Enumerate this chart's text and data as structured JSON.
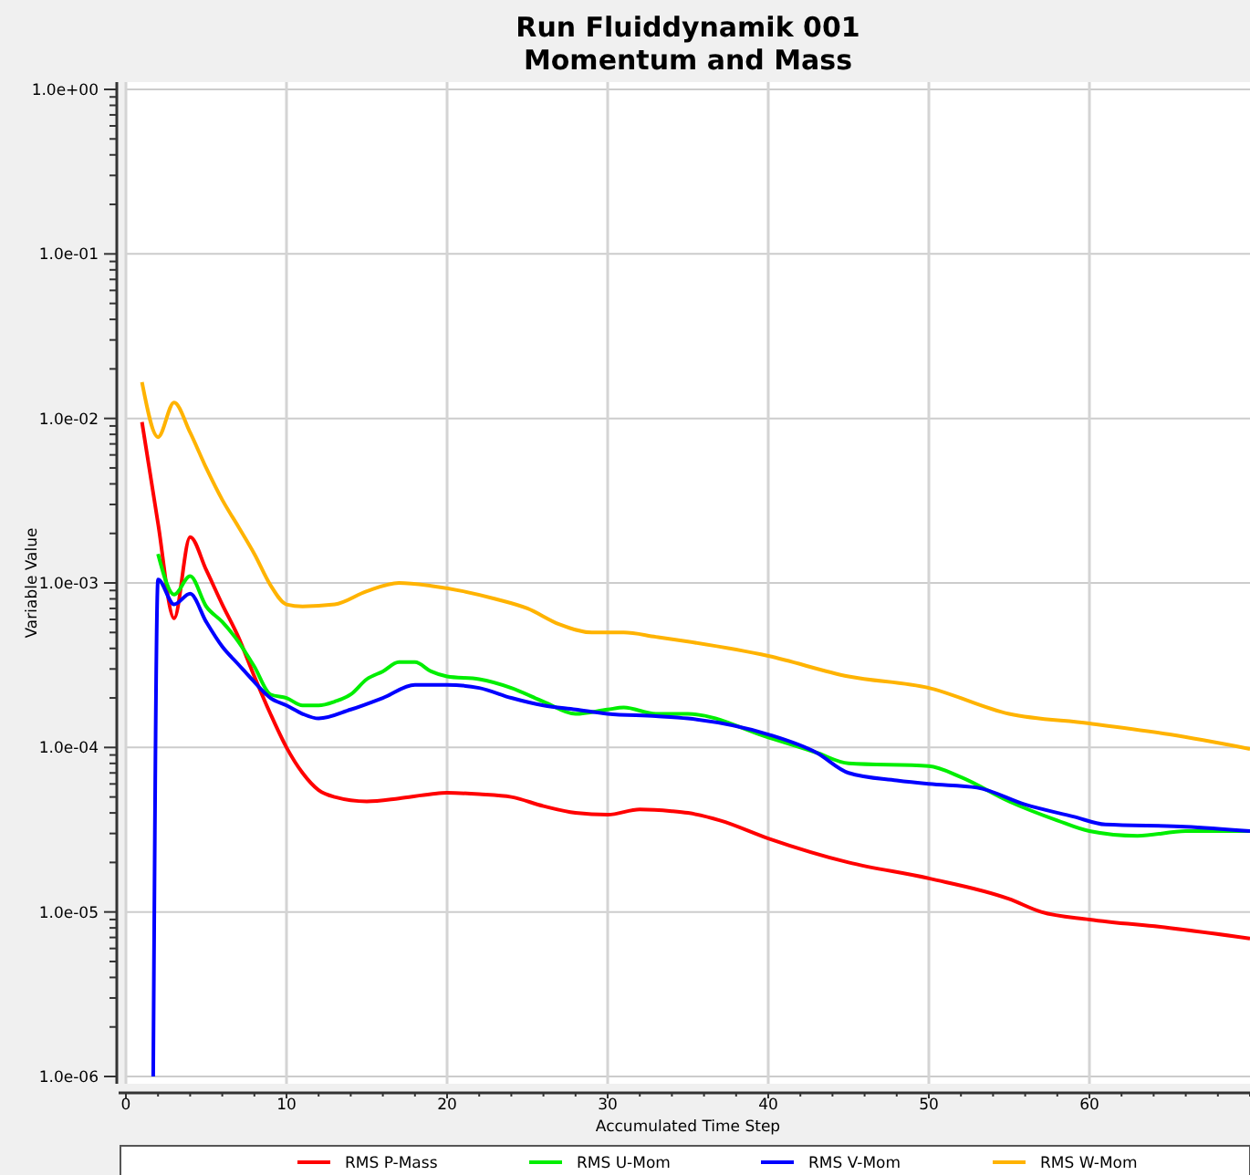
{
  "chart_data": {
    "type": "line",
    "title": "Run Fluiddynamik 001",
    "subtitle": "Momentum and Mass",
    "xlabel": "Accumulated Time Step",
    "ylabel": "Variable Value",
    "log": "y",
    "grid": true,
    "legend": "bottom",
    "marker": "none",
    "line_style": "solid",
    "xlim": [
      0,
      70
    ],
    "xticks": [
      0,
      10,
      20,
      30,
      40,
      50,
      60
    ],
    "ylim": [
      1e-06,
      1
    ],
    "yticks": [
      {
        "value": 1,
        "label": "1.0e+00"
      },
      {
        "value": 0.1,
        "label": "1.0e-01"
      },
      {
        "value": 0.01,
        "label": "1.0e-02"
      },
      {
        "value": 0.001,
        "label": "1.0e-03"
      },
      {
        "value": 0.0001,
        "label": "1.0e-04"
      },
      {
        "value": 1e-05,
        "label": "1.0e-05"
      },
      {
        "value": 1e-06,
        "label": "1.0e-06"
      }
    ],
    "series": [
      {
        "name": "RMS P-Mass",
        "color": "#ff0000",
        "x": [
          1,
          2,
          3,
          4,
          5,
          6,
          7,
          8,
          9,
          10,
          11,
          12,
          13,
          15,
          17,
          19,
          20,
          22,
          24,
          26,
          28,
          30,
          32,
          34,
          35,
          37,
          40,
          45,
          50,
          55,
          57,
          60,
          65,
          70
        ],
        "values": [
          0.0095,
          0.0023,
          0.00061,
          0.0019,
          0.0012,
          0.00074,
          0.00047,
          0.00027,
          0.00016,
          0.0001,
          7e-05,
          5.5e-05,
          5e-05,
          4.7e-05,
          4.9e-05,
          5.2e-05,
          5.3e-05,
          5.2e-05,
          5e-05,
          4.4e-05,
          4e-05,
          3.9e-05,
          4.2e-05,
          4.1e-05,
          4e-05,
          3.6e-05,
          2.8e-05,
          2e-05,
          1.6e-05,
          1.2e-05,
          1e-05,
          9e-06,
          8e-06,
          6.9e-06
        ]
      },
      {
        "name": "RMS U-Mom",
        "color": "#00ee00",
        "x": [
          2,
          3,
          4,
          5,
          6,
          7,
          8,
          9,
          10,
          11,
          12,
          13,
          14,
          15,
          16,
          17,
          18,
          19,
          20,
          22,
          24,
          26,
          28,
          30,
          31,
          33,
          35,
          40,
          43,
          45,
          50,
          52,
          55,
          58,
          60,
          63,
          66,
          70
        ],
        "values": [
          0.0015,
          0.00085,
          0.0011,
          0.00072,
          0.00058,
          0.00044,
          0.00031,
          0.00021,
          0.0002,
          0.00018,
          0.00018,
          0.00019,
          0.00021,
          0.00026,
          0.00029,
          0.00033,
          0.00033,
          0.00029,
          0.00027,
          0.00026,
          0.00023,
          0.00019,
          0.00016,
          0.00017,
          0.000175,
          0.00016,
          0.00016,
          0.000115,
          9.3e-05,
          8e-05,
          7.7e-05,
          6.6e-05,
          4.7e-05,
          3.6e-05,
          3.1e-05,
          2.9e-05,
          3.1e-05,
          3.1e-05
        ]
      },
      {
        "name": "RMS V-Mom",
        "color": "#0000ff",
        "x": [
          1.7,
          2,
          3,
          4,
          5,
          6,
          7,
          8,
          9,
          10,
          11,
          12,
          14,
          16,
          18,
          20,
          22,
          24,
          26,
          28,
          30,
          33,
          35,
          40,
          43,
          45,
          48,
          50,
          53,
          56,
          59,
          61,
          66,
          70
        ],
        "values": [
          1e-06,
          0.00105,
          0.00074,
          0.00086,
          0.00058,
          0.00041,
          0.00032,
          0.00025,
          0.0002,
          0.00018,
          0.00016,
          0.00015,
          0.00017,
          0.0002,
          0.00024,
          0.00024,
          0.00023,
          0.0002,
          0.00018,
          0.00017,
          0.00016,
          0.000155,
          0.00015,
          0.00012,
          9.3e-05,
          7e-05,
          6.3e-05,
          6e-05,
          5.7e-05,
          4.5e-05,
          3.8e-05,
          3.4e-05,
          3.3e-05,
          3.1e-05
        ]
      },
      {
        "name": "RMS W-Mom",
        "color": "#ffb300",
        "x": [
          1,
          2,
          3,
          4,
          5,
          6,
          7,
          8,
          9,
          10,
          11,
          13,
          15,
          17,
          19,
          21,
          23,
          25,
          27,
          29,
          31,
          33,
          35,
          40,
          45,
          50,
          55,
          60,
          65,
          70
        ],
        "values": [
          0.0166,
          0.0077,
          0.0125,
          0.0082,
          0.005,
          0.0032,
          0.0022,
          0.0015,
          0.00097,
          0.00074,
          0.00072,
          0.00074,
          0.00089,
          0.001,
          0.00096,
          0.00089,
          0.0008,
          0.0007,
          0.00056,
          0.0005,
          0.0005,
          0.00047,
          0.00044,
          0.00036,
          0.00027,
          0.00023,
          0.00016,
          0.00014,
          0.00012,
          9.8e-05
        ]
      }
    ]
  }
}
